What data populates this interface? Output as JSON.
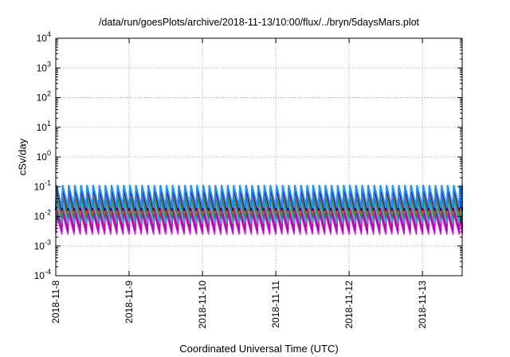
{
  "chart_data": {
    "type": "line",
    "title": "/data/run/goesPlots/archive/2018-11-13/10:00/flux/../bryn/5daysMars.plot",
    "xlabel": "Coordinated Universal Time (UTC)",
    "ylabel": "cSv/day",
    "x_ticks": [
      "2018-11-8",
      "2018-11-9",
      "2018-11-10",
      "2018-11-11",
      "2018-11-12",
      "2018-11-13"
    ],
    "xlim": [
      "2018-11-08 00:00",
      "2018-11-13 13:00"
    ],
    "y_scale": "log",
    "ylim": [
      0.0001,
      10000
    ],
    "y_ticks": [
      {
        "base": "10",
        "exp": "-4"
      },
      {
        "base": "10",
        "exp": "-3"
      },
      {
        "base": "10",
        "exp": "-2"
      },
      {
        "base": "10",
        "exp": "-1"
      },
      {
        "base": "10",
        "exp": "0"
      },
      {
        "base": "10",
        "exp": "1"
      },
      {
        "base": "10",
        "exp": "2"
      },
      {
        "base": "10",
        "exp": "3"
      },
      {
        "base": "10",
        "exp": "4"
      }
    ],
    "grid": true,
    "cycle_hours": 2,
    "series": [
      {
        "color": "#ff00ff",
        "peak": 0.012,
        "trough": 0.0025
      },
      {
        "color": "#9400d3",
        "peak": 0.016,
        "trough": 0.0032
      },
      {
        "color": "#c71585",
        "peak": 0.02,
        "trough": 0.004
      },
      {
        "color": "#00bfbf",
        "peak": 0.03,
        "trough": 0.006
      },
      {
        "color": "#228b22",
        "peak": 0.045,
        "trough": 0.009
      },
      {
        "color": "#ff4500",
        "peak": 0.07,
        "trough": 0.012
      },
      {
        "color": "#0000cd",
        "peak": 0.09,
        "trough": 0.016
      },
      {
        "color": "#1e90ff",
        "peak": 0.11,
        "trough": 0.02
      }
    ]
  }
}
